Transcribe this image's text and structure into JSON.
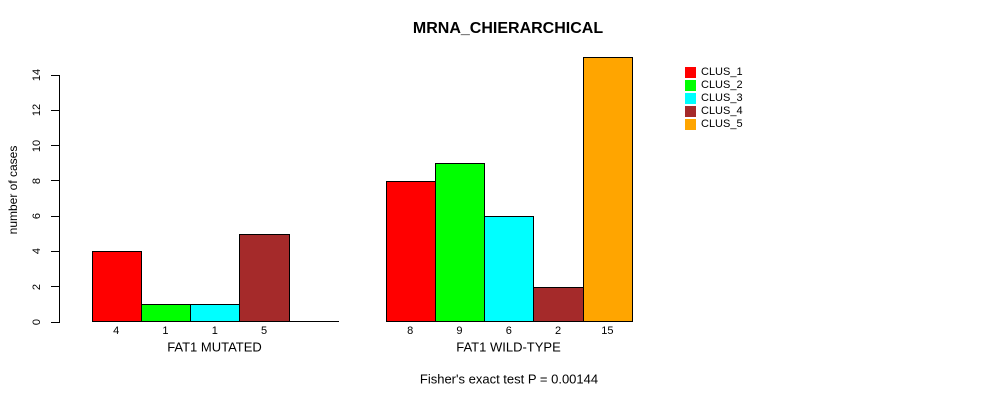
{
  "title": "MRNA_CHIERARCHICAL",
  "subtitle": "Fisher's exact test P = 0.00144",
  "chart_data": {
    "type": "bar",
    "title": "MRNA_CHIERARCHICAL",
    "ylabel": "number of cases",
    "ylim": [
      0,
      14
    ],
    "ytick_step": 2,
    "grid": false,
    "legend_position": "right",
    "categories": [
      "FAT1 MUTATED",
      "FAT1 WILD-TYPE"
    ],
    "series": [
      {
        "name": "CLUS_1",
        "color": "#FF0000",
        "values": [
          4,
          8
        ]
      },
      {
        "name": "CLUS_2",
        "color": "#00FF00",
        "values": [
          1,
          9
        ]
      },
      {
        "name": "CLUS_3",
        "color": "#00FFFF",
        "values": [
          1,
          6
        ]
      },
      {
        "name": "CLUS_4",
        "color": "#A52A2A",
        "values": [
          5,
          2
        ]
      },
      {
        "name": "CLUS_5",
        "color": "#FFA500",
        "values": [
          0,
          15
        ]
      }
    ],
    "groups": [
      {
        "label": "FAT1 MUTATED",
        "bar_labels": [
          "4",
          "1",
          "1",
          "5",
          ""
        ]
      },
      {
        "label": "FAT1 WILD-TYPE",
        "bar_labels": [
          "8",
          "9",
          "6",
          "2",
          "15"
        ]
      }
    ],
    "annotation": "Fisher's exact test P = 0.00144"
  }
}
